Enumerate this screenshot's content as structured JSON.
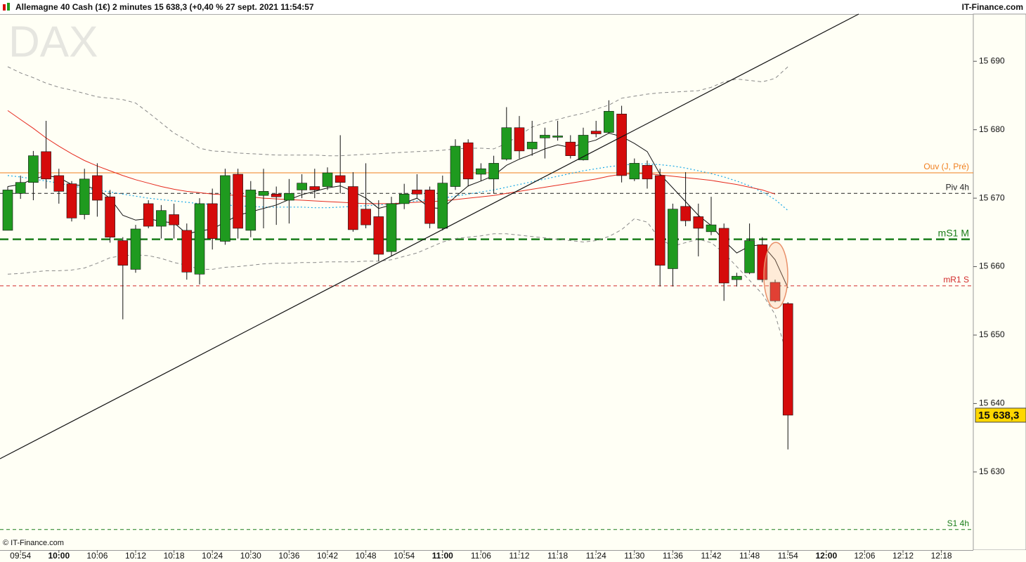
{
  "chart_data": {
    "type": "candlestick",
    "title": "Allemagne 40 Cash (1€) 2 minutes 15 638,3 (+0,40 % 27 sept. 2021 11:54:57",
    "watermark": "DAX",
    "source": "IT-Finance.com",
    "copyright": "© IT-Finance.com",
    "categories": [
      null,
      "09:54",
      null,
      null,
      "10:00",
      null,
      null,
      "10:06",
      null,
      null,
      "10:12",
      null,
      null,
      "10:18",
      null,
      null,
      "10:24",
      null,
      null,
      "10:30",
      null,
      null,
      "10:36",
      null,
      null,
      "10:42",
      null,
      null,
      "10:48",
      null,
      null,
      "10:54",
      null,
      null,
      "11:00",
      null,
      null,
      "11:06",
      null,
      null,
      "11:12",
      null,
      null,
      "11:18",
      null,
      null,
      "11:24",
      null,
      null,
      "11:30",
      null,
      null,
      "11:36",
      null,
      null,
      "11:42",
      null,
      null,
      "11:48",
      null,
      null,
      "11:54",
      null,
      null,
      "12:00",
      null,
      null,
      "12:06",
      null,
      null,
      "12:12",
      null,
      null,
      "12:18",
      null
    ],
    "open": [
      15665.3,
      15670.7,
      15672.3,
      15676.8,
      15673.3,
      15672.1,
      15667.6,
      15673.3,
      15670.2,
      15663.8,
      15659.6,
      15669.2,
      15665.9,
      15667.6,
      15665.3,
      15658.9,
      15669.2,
      15663.7,
      15673.5,
      15665.3,
      15670.4,
      15670.6,
      15669.7,
      15671.2,
      15671.7,
      15671.7,
      15673.3,
      15671.7,
      15668.4,
      15667.3,
      15662.2,
      15669.2,
      15671.2,
      15671.2,
      15665.6,
      15671.7,
      15678.1,
      15673.5,
      15672.8,
      15675.7,
      15680.3,
      15677.2,
      15678.8,
      15678.9,
      15678.2,
      15675.6,
      15679.8,
      15679.6,
      15682.3,
      15672.8,
      15674.8,
      15673.3,
      15659.7,
      15668.8,
      15667.3,
      15665.1,
      15665.6,
      15658.1,
      15659.1,
      15663.2,
      15657.7,
      15654.6,
      null,
      null,
      null,
      null,
      null,
      null,
      null,
      null,
      null,
      null,
      null,
      null,
      null
    ],
    "high": [
      15671.7,
      15673.3,
      15676.9,
      15681.3,
      15674.3,
      15672.5,
      15674.3,
      15675.1,
      15671.2,
      15664.3,
      15666.1,
      15669.7,
      15669.0,
      15669.2,
      15666.3,
      15670.0,
      15671.4,
      15674.3,
      15674.3,
      15672.5,
      15674.3,
      15671.7,
      15672.8,
      15673.5,
      15674.3,
      15674.5,
      15679.2,
      15673.8,
      15675.1,
      15669.7,
      15670.2,
      15672.1,
      15673.5,
      15671.7,
      15673.3,
      15678.6,
      15678.6,
      15675.1,
      15676.2,
      15683.3,
      15682.0,
      15681.3,
      15680.3,
      15681.3,
      15679.2,
      15680.3,
      15681.3,
      15684.3,
      15683.5,
      15675.8,
      15675.5,
      15674.3,
      15669.2,
      15673.8,
      15669.2,
      15670.2,
      15666.3,
      15659.1,
      15666.3,
      15664.3,
      15658.1,
      15654.8,
      null,
      null,
      null,
      null,
      null,
      null,
      null,
      null,
      null,
      null,
      null,
      null,
      null
    ],
    "low": [
      15665.3,
      15669.9,
      15669.7,
      15671.4,
      15669.2,
      15666.6,
      15666.9,
      15667.3,
      15663.5,
      15652.3,
      15659.1,
      15665.6,
      15664.1,
      15664.1,
      15658.1,
      15657.4,
      15662.5,
      15663.2,
      15664.1,
      15664.3,
      15665.6,
      15666.1,
      15666.3,
      15670.0,
      15670.0,
      15671.2,
      15670.7,
      15665.1,
      15665.6,
      15660.8,
      15661.5,
      15668.4,
      15670.0,
      15665.6,
      15665.3,
      15671.2,
      15671.7,
      15672.5,
      15670.7,
      15675.5,
      15675.8,
      15676.2,
      15675.8,
      15678.4,
      15675.8,
      15675.5,
      15678.9,
      15679.4,
      15672.3,
      15672.5,
      15671.4,
      15657.1,
      15657.1,
      15665.9,
      15661.5,
      15664.6,
      15655.0,
      15657.1,
      15658.9,
      15657.7,
      15654.8,
      15633.3,
      null,
      null,
      null,
      null,
      null,
      null,
      null,
      null,
      null,
      null,
      null,
      null,
      null
    ],
    "close": [
      15671.2,
      15672.3,
      15676.2,
      15672.8,
      15671.0,
      15667.1,
      15672.8,
      15669.7,
      15664.3,
      15660.2,
      15665.5,
      15665.9,
      15668.2,
      15666.1,
      15659.2,
      15669.2,
      15664.1,
      15673.3,
      15665.6,
      15671.2,
      15671.0,
      15670.2,
      15670.7,
      15672.2,
      15671.2,
      15673.7,
      15672.3,
      15665.4,
      15666.1,
      15661.8,
      15669.2,
      15670.6,
      15670.6,
      15666.3,
      15672.2,
      15677.6,
      15672.8,
      15674.3,
      15675.1,
      15680.3,
      15676.9,
      15678.2,
      15679.2,
      15679.1,
      15676.2,
      15679.2,
      15679.4,
      15682.7,
      15673.3,
      15675.1,
      15672.8,
      15660.2,
      15668.4,
      15666.7,
      15665.6,
      15666.1,
      15657.6,
      15658.6,
      15663.8,
      15658.1,
      15655.0,
      15638.3,
      null,
      null,
      null,
      null,
      null,
      null,
      null,
      null,
      null,
      null,
      null,
      null,
      null
    ],
    "up_color": "#1f9a1f",
    "down_color": "#d50b0b",
    "lines": [
      {
        "color": "#888888",
        "style": "dashed",
        "values": [
          15689.2,
          15688.3,
          15687.6,
          15686.8,
          15686.2,
          15685.8,
          15685.3,
          15684.8,
          15684.6,
          15684.4,
          15683.9,
          15682.5,
          15681.0,
          15679.5,
          15678.5,
          15677.3,
          15676.9,
          15676.8,
          15676.6,
          15676.5,
          15676.4,
          15676.3,
          15676.3,
          15676.3,
          15676.3,
          15676.2,
          15676.2,
          15676.3,
          15676.4,
          15676.5,
          15676.6,
          15676.7,
          15676.8,
          15676.9,
          15677.0,
          15677.2,
          15677.3,
          15677.3,
          15677.2,
          15678.0,
          15679.2,
          15680.4,
          15681.0,
          15681.5,
          15682.0,
          15682.4,
          15683.0,
          15683.6,
          15684.6,
          15684.9,
          15685.2,
          15685.4,
          15685.5,
          15685.6,
          15685.7,
          15686.2,
          15687.0,
          15687.4,
          15687.2,
          15687.0,
          15687.5,
          15689.2,
          null,
          null,
          null,
          null,
          null,
          null,
          null,
          null,
          null,
          null,
          null,
          null,
          null
        ]
      },
      {
        "color": "#888888",
        "style": "dashed",
        "values": [
          15658.9,
          15659.0,
          15659.2,
          15659.4,
          15659.4,
          15659.5,
          15659.8,
          15660.5,
          15661.3,
          15661.6,
          15661.7,
          15661.6,
          15661.2,
          15660.6,
          15660.2,
          15659.6,
          15659.6,
          15659.9,
          15660.0,
          15660.2,
          15660.4,
          15660.5,
          15660.5,
          15660.6,
          15660.6,
          15660.7,
          15660.7,
          15660.7,
          15660.8,
          15660.8,
          15661.0,
          15661.5,
          15662.0,
          15662.8,
          15663.6,
          15664.1,
          15664.3,
          15664.5,
          15664.8,
          15664.8,
          15664.6,
          15664.4,
          15664.2,
          15664.0,
          15663.8,
          15663.6,
          15663.8,
          15664.4,
          15665.4,
          15667.0,
          15666.5,
          15664.0,
          15663.0,
          15663.5,
          15664.0,
          15663.5,
          15662.0,
          15660.0,
          15658.0,
          15656.0,
          15653.0,
          15646.6,
          null,
          null,
          null,
          null,
          null,
          null,
          null,
          null,
          null,
          null,
          null,
          null,
          null
        ]
      },
      {
        "color": "#1aa8e6",
        "style": "dotted",
        "values": [
          15673.3,
          15673.1,
          15672.8,
          15672.5,
          15672.2,
          15671.8,
          15671.5,
          15671.2,
          15670.9,
          15670.6,
          15670.3,
          15670.0,
          15669.8,
          15669.6,
          15669.4,
          15669.2,
          15669.1,
          15669.0,
          15668.9,
          15668.8,
          15668.7,
          15668.7,
          15668.7,
          15668.7,
          15668.6,
          15668.6,
          15668.7,
          15668.8,
          15668.9,
          15669.0,
          15669.2,
          15669.4,
          15669.6,
          15669.8,
          15670.0,
          15670.3,
          15670.6,
          15670.9,
          15671.2,
          15671.6,
          15672.0,
          15672.4,
          15672.8,
          15673.2,
          15673.6,
          15674.0,
          15674.3,
          15674.6,
          15674.8,
          15675.0,
          15675.0,
          15674.9,
          15674.7,
          15674.4,
          15674.0,
          15673.6,
          15673.1,
          15672.5,
          15671.8,
          15670.9,
          15669.8,
          15668.2,
          null,
          null,
          null,
          null,
          null,
          null,
          null,
          null,
          null,
          null,
          null,
          null,
          null
        ]
      },
      {
        "color": "#e62a1e",
        "style": "solid",
        "values": [
          15682.8,
          15681.5,
          15680.2,
          15678.8,
          15677.6,
          15676.5,
          15675.5,
          15674.7,
          15674.0,
          15673.3,
          15672.7,
          15672.2,
          15671.7,
          15671.3,
          15671.0,
          15670.8,
          15670.6,
          15670.5,
          15670.4,
          15670.2,
          15670.0,
          15669.9,
          15669.8,
          15669.7,
          15669.6,
          15669.5,
          15669.4,
          15669.3,
          15669.2,
          15669.2,
          15669.2,
          15669.3,
          15669.4,
          15669.5,
          15669.6,
          15669.8,
          15670.0,
          15670.2,
          15670.4,
          15670.7,
          15671.0,
          15671.3,
          15671.6,
          15671.9,
          15672.2,
          15672.5,
          15672.8,
          15673.2,
          15673.5,
          15673.6,
          15673.6,
          15673.4,
          15673.2,
          15673.0,
          15672.8,
          15672.6,
          15672.3,
          15672.0,
          15671.6,
          15671.2,
          15670.6,
          null,
          null,
          null,
          null,
          null,
          null,
          null,
          null,
          null,
          null,
          null,
          null,
          null,
          null
        ]
      },
      {
        "color": "#111111",
        "style": "solid",
        "values": [
          15671.7,
          15672.0,
          15672.8,
          15673.3,
          15673.0,
          15672.0,
          15671.8,
          15671.3,
          15670.0,
          15667.5,
          15666.8,
          15667.0,
          15666.6,
          15666.4,
          15664.8,
          15665.2,
          15665.5,
          15666.5,
          15667.5,
          15668.0,
          15668.5,
          15669.0,
          15669.8,
          15670.5,
          15671.0,
          15671.5,
          15671.8,
          15671.0,
          15670.0,
          15668.5,
          15669.0,
          15669.3,
          15670.0,
          15668.6,
          15668.5,
          15670.2,
          15671.8,
          15672.5,
          15673.3,
          15674.8,
          15675.7,
          15676.4,
          15677.2,
          15677.8,
          15677.4,
          15678.0,
          15678.5,
          15679.5,
          15679.0,
          15678.0,
          15676.8,
          15673.5,
          15671.5,
          15669.5,
          15667.5,
          15666.0,
          15663.8,
          15662.0,
          15663.0,
          15663.2,
          15661.0,
          15656.9,
          null,
          null,
          null,
          null,
          null,
          null,
          null,
          null,
          null,
          null,
          null,
          null,
          null
        ]
      }
    ],
    "levels": [
      {
        "label": "Ouv (J, Pré)",
        "value": 15673.7,
        "color": "#f07f1e",
        "style": "solid"
      },
      {
        "label": "Piv 4h",
        "value": 15670.7,
        "color": "#222222",
        "style": "dashed"
      },
      {
        "label": "mS1 M",
        "value": 15664.0,
        "color": "#1a7d1a",
        "style": "bold-dashed"
      },
      {
        "label": "mR1 S",
        "value": 15657.2,
        "color": "#d22a2a",
        "style": "dashed"
      },
      {
        "label": "S1 4h",
        "value": 15621.6,
        "color": "#1a7d1a",
        "style": "dashed"
      }
    ],
    "last_price": {
      "value": 15638.3,
      "label": "15 638,3"
    },
    "ylim": [
      15618.9,
      15696.9
    ],
    "yticks": [
      {
        "value": 15630,
        "label": "15 630"
      },
      {
        "value": 15640,
        "label": "15 640"
      },
      {
        "value": 15650,
        "label": "15 650"
      },
      {
        "value": 15660,
        "label": "15 660"
      },
      {
        "value": 15670,
        "label": "15 670"
      },
      {
        "value": 15680,
        "label": "15 680"
      },
      {
        "value": 15690,
        "label": "15 690"
      }
    ]
  }
}
